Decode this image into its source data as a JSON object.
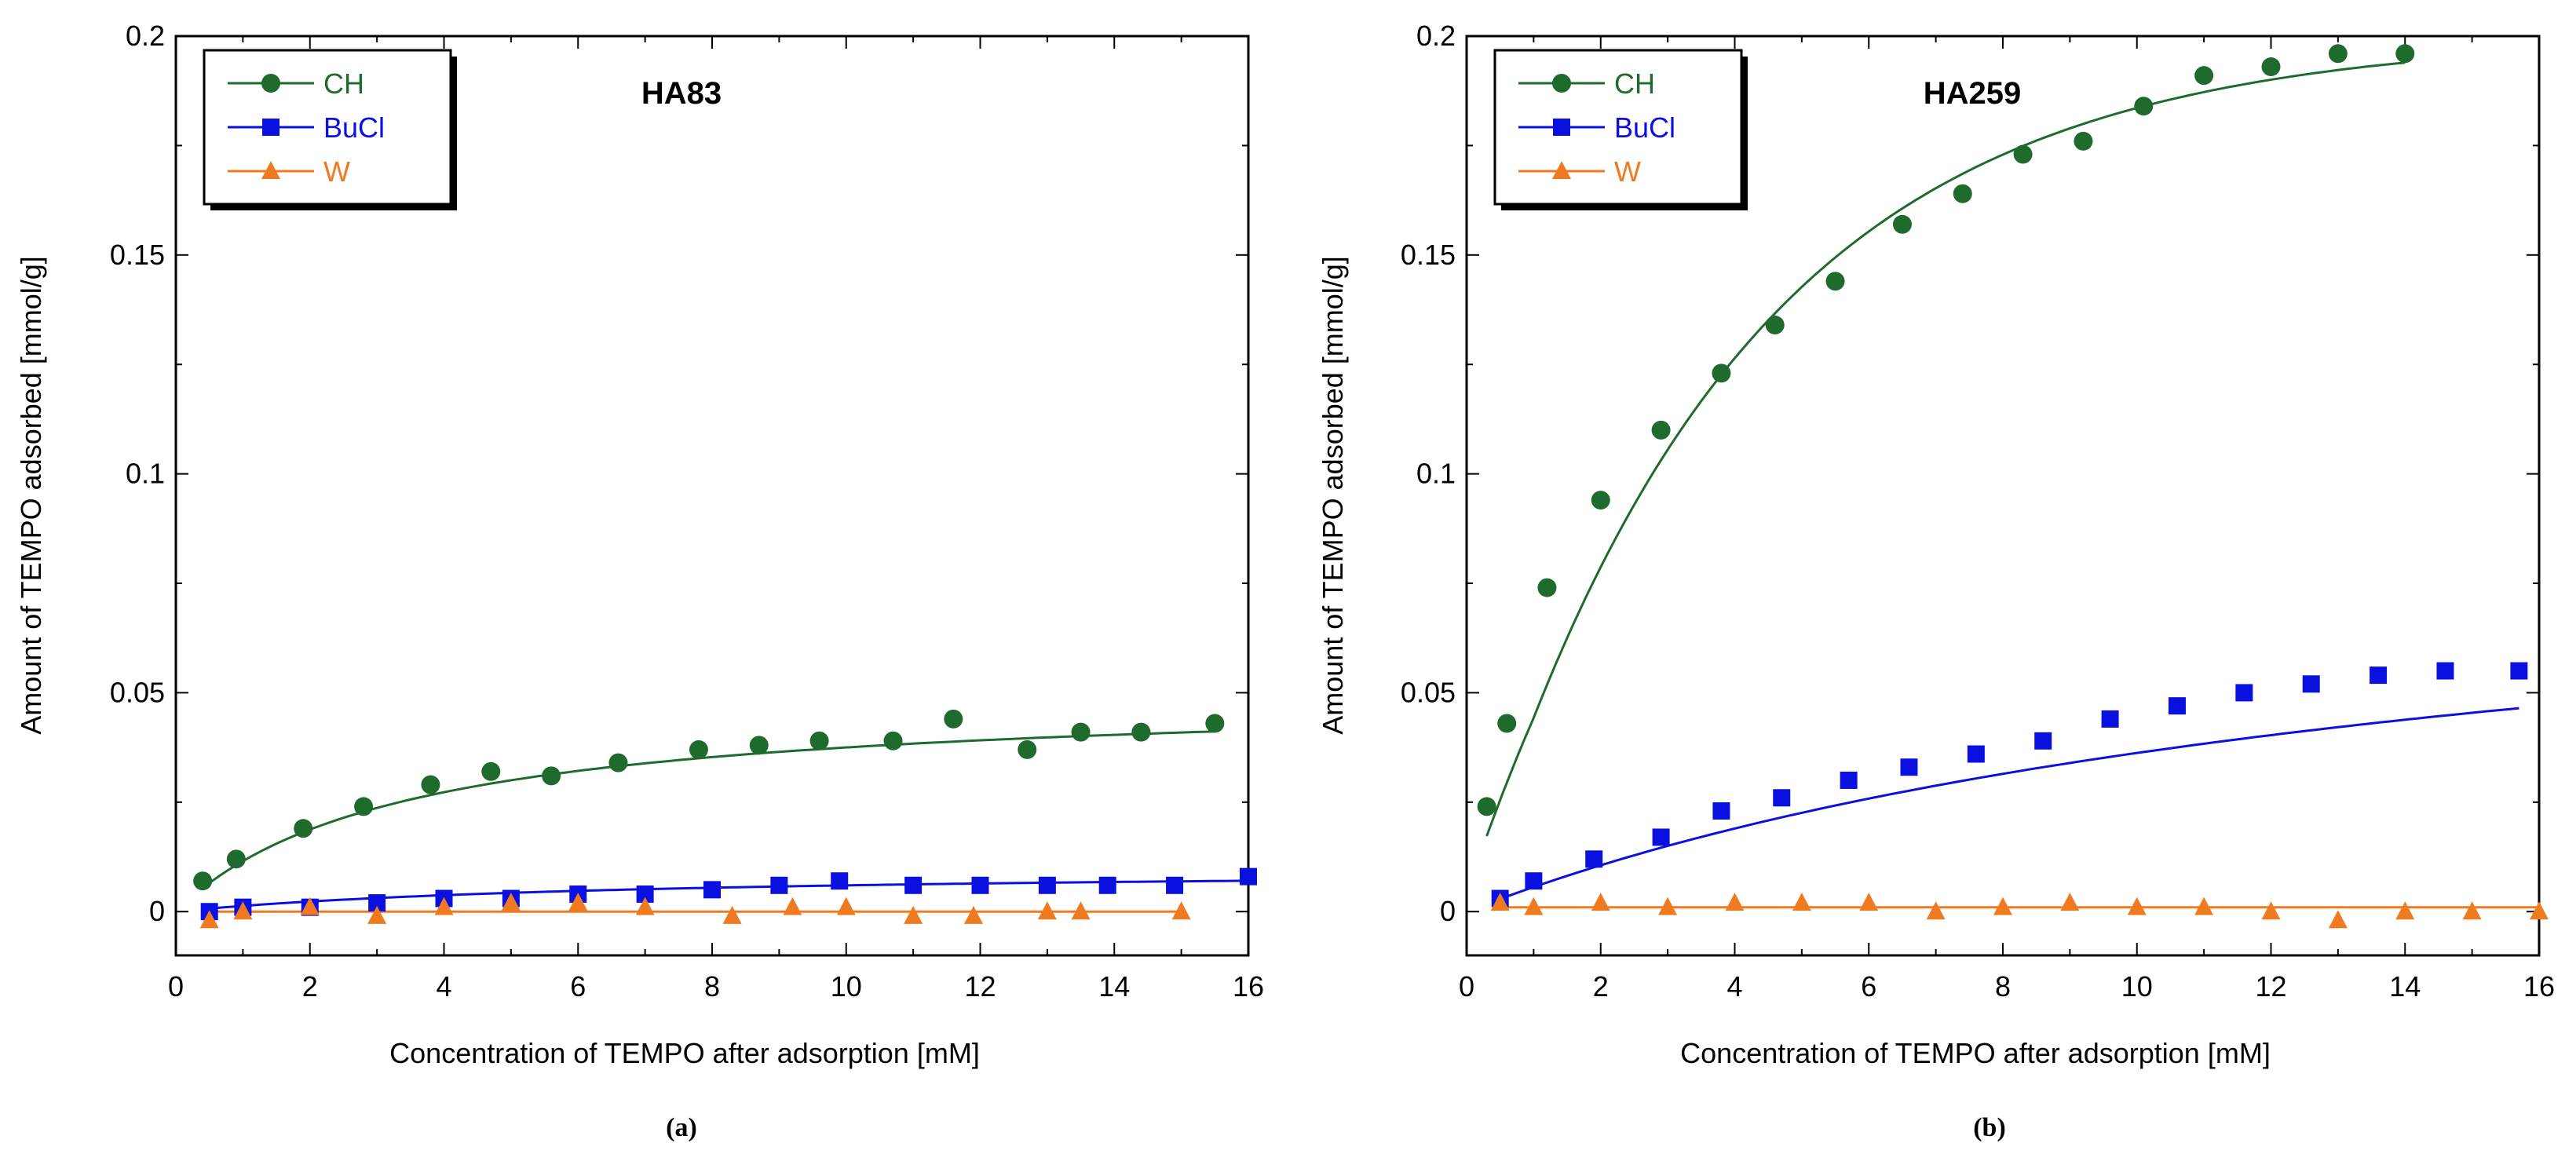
{
  "colors": {
    "CH": "#1f6b2e",
    "BuCl": "#0a10e0",
    "W": "#f07a20",
    "axis": "#000000"
  },
  "chart_data": [
    {
      "type": "scatter",
      "panel_label": "(a)",
      "title": "HA83",
      "xlabel": "Concentration of TEMPO after adsorption [mM]",
      "ylabel": "Amount of TEMPO adsorbed [mmol/g]",
      "xlim": [
        0,
        16
      ],
      "ylim": [
        -0.01,
        0.2
      ],
      "xticks": [
        0,
        2,
        4,
        6,
        8,
        10,
        12,
        14,
        16
      ],
      "xtick_labels": [
        "0",
        "2",
        "4",
        "6",
        "8",
        "10",
        "12",
        "14",
        "16"
      ],
      "yticks": [
        0,
        0.05,
        0.1,
        0.15,
        0.2
      ],
      "ytick_labels": [
        "0",
        "0.05",
        "0.1",
        "0.15",
        "0.2"
      ],
      "legend_position": "top-left",
      "series": [
        {
          "name": "CH",
          "marker": "circle",
          "x": [
            0.4,
            0.9,
            1.9,
            2.8,
            3.8,
            4.7,
            5.6,
            6.6,
            7.8,
            8.7,
            9.6,
            10.7,
            11.6,
            12.7,
            13.5,
            14.4,
            15.5
          ],
          "y": [
            0.007,
            0.012,
            0.019,
            0.024,
            0.029,
            0.032,
            0.031,
            0.034,
            0.037,
            0.038,
            0.039,
            0.039,
            0.044,
            0.037,
            0.041,
            0.041,
            0.043
          ],
          "fit": {
            "qmax": 0.05,
            "K": 0.3
          }
        },
        {
          "name": "BuCl",
          "marker": "square",
          "x": [
            0.5,
            1.0,
            2.0,
            3.0,
            4.0,
            5.0,
            6.0,
            7.0,
            8.0,
            9.0,
            9.9,
            11.0,
            12.0,
            13.0,
            13.9,
            14.9,
            16.0
          ],
          "y": [
            0.0,
            0.001,
            0.001,
            0.002,
            0.003,
            0.003,
            0.004,
            0.004,
            0.005,
            0.006,
            0.007,
            0.006,
            0.006,
            0.006,
            0.006,
            0.006,
            0.008
          ],
          "fit": {
            "qmax": 0.01,
            "K": 0.15
          }
        },
        {
          "name": "W",
          "marker": "triangle",
          "x": [
            0.5,
            1.0,
            2.0,
            3.0,
            4.0,
            5.0,
            6.0,
            7.0,
            8.3,
            9.2,
            10.0,
            11.0,
            11.9,
            13.0,
            13.5,
            15.0
          ],
          "y": [
            -0.002,
            0.0,
            0.001,
            -0.001,
            0.001,
            0.002,
            0.002,
            0.001,
            -0.001,
            0.001,
            0.001,
            -0.001,
            -0.001,
            0.0,
            0.0,
            0.0
          ],
          "fit": {
            "flat": 0.0
          }
        }
      ]
    },
    {
      "type": "scatter",
      "panel_label": "(b)",
      "title": "HA259",
      "xlabel": "Concentration of TEMPO after adsorption [mM]",
      "ylabel": "Amount of TEMPO adsorbed [mmol/g]",
      "xlim": [
        0,
        16
      ],
      "ylim": [
        -0.01,
        0.2
      ],
      "xticks": [
        0,
        2,
        4,
        6,
        8,
        10,
        12,
        14,
        16
      ],
      "xtick_labels": [
        "0",
        "2",
        "4",
        "6",
        "8",
        "10",
        "12",
        "14",
        "16"
      ],
      "yticks": [
        0,
        0.05,
        0.1,
        0.15,
        0.2
      ],
      "ytick_labels": [
        "0",
        "0.05",
        "0.1",
        "0.15",
        "0.2"
      ],
      "legend_position": "top-left",
      "series": [
        {
          "name": "CH",
          "marker": "circle",
          "x": [
            0.3,
            0.6,
            1.2,
            2.0,
            2.9,
            3.8,
            4.6,
            5.5,
            6.5,
            7.4,
            8.3,
            9.2,
            10.1,
            11.0,
            12.0,
            13.0,
            14.0
          ],
          "y": [
            0.024,
            0.043,
            0.074,
            0.094,
            0.11,
            0.123,
            0.134,
            0.144,
            0.157,
            0.164,
            0.173,
            0.176,
            0.184,
            0.191,
            0.193,
            0.196,
            0.196
          ],
          "fit": {
            "qmax": 0.2,
            "K": 0.25,
            "exp": true
          }
        },
        {
          "name": "BuCl",
          "marker": "square",
          "x": [
            0.5,
            1.0,
            1.9,
            2.9,
            3.8,
            4.7,
            5.7,
            6.6,
            7.6,
            8.6,
            9.6,
            10.6,
            11.6,
            12.6,
            13.6,
            14.6,
            15.7
          ],
          "y": [
            0.003,
            0.007,
            0.012,
            0.017,
            0.023,
            0.026,
            0.03,
            0.033,
            0.036,
            0.039,
            0.044,
            0.047,
            0.05,
            0.052,
            0.054,
            0.055,
            0.055
          ],
          "fit": {
            "qmax": 0.092,
            "K": 0.065
          }
        },
        {
          "name": "W",
          "marker": "triangle",
          "x": [
            0.5,
            1.0,
            2.0,
            3.0,
            4.0,
            5.0,
            6.0,
            7.0,
            8.0,
            9.0,
            10.0,
            11.0,
            12.0,
            13.0,
            14.0,
            15.0,
            16.0
          ],
          "y": [
            0.002,
            0.001,
            0.002,
            0.001,
            0.002,
            0.002,
            0.002,
            0.0,
            0.001,
            0.002,
            0.001,
            0.001,
            0.0,
            -0.002,
            0.0,
            0.0,
            0.0
          ],
          "fit": {
            "flat": 0.001
          }
        }
      ]
    }
  ]
}
